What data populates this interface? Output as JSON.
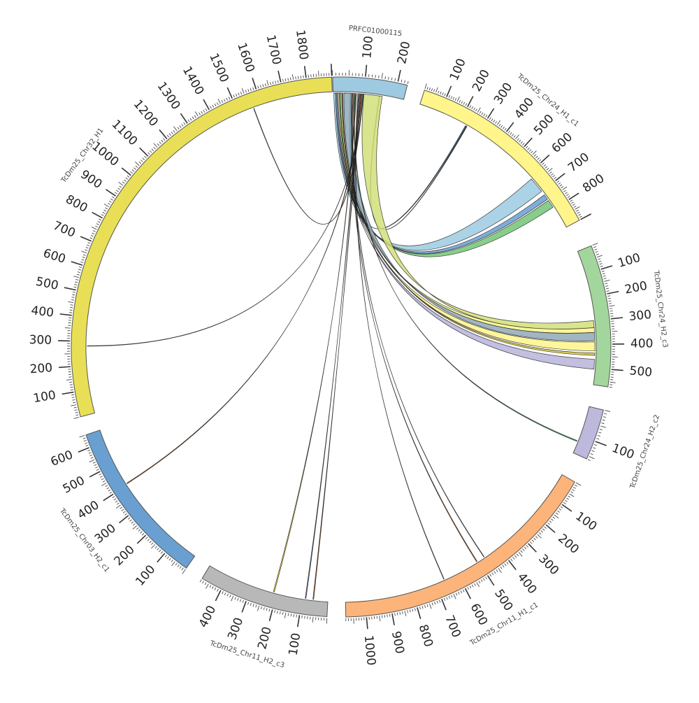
{
  "segments": [
    {
      "id": "prfc",
      "name": "PRFC01000115",
      "length": 230,
      "color": "#9ecae1",
      "ticks": [
        100,
        200
      ]
    },
    {
      "id": "chr24h1c1",
      "name": "TcDm25_Chr24_H1_c1",
      "length": 900,
      "color": "#fff58a",
      "ticks": [
        100,
        200,
        300,
        400,
        500,
        600,
        700,
        800
      ]
    },
    {
      "id": "chr24h2c3",
      "name": "TcDm25_Chr24_H2_c3",
      "length": 570,
      "color": "#a3d69c",
      "ticks": [
        100,
        200,
        300,
        400,
        500
      ]
    },
    {
      "id": "chr24h2c2",
      "name": "TcDm25_Chr24_H2_c2",
      "length": 160,
      "color": "#bcb9dc",
      "ticks": [
        100
      ]
    },
    {
      "id": "chr11h1c1",
      "name": "TcDm25_Chr11_H1_c1",
      "length": 1080,
      "color": "#fdb47a",
      "ticks": [
        100,
        200,
        300,
        400,
        500,
        600,
        700,
        800,
        900,
        1000
      ]
    },
    {
      "id": "chr11h2c3",
      "name": "TcDm25_Chr11_H2_c3",
      "length": 480,
      "color": "#b8b8b8",
      "ticks": [
        100,
        200,
        300,
        400
      ]
    },
    {
      "id": "chr03h2c1",
      "name": "TcDm25_Chr03_H2_c1",
      "length": 650,
      "color": "#6a9fd1",
      "ticks": [
        100,
        200,
        300,
        400,
        500,
        600
      ]
    },
    {
      "id": "chr32h1",
      "name": "TcDm25_Chr32_H1",
      "length": 1900,
      "color": "#e8df56",
      "ticks": [
        100,
        200,
        300,
        400,
        500,
        600,
        700,
        800,
        900,
        1000,
        1100,
        1200,
        1300,
        1400,
        1500,
        1600,
        1700,
        1800
      ]
    }
  ],
  "links": [
    {
      "from": "prfc",
      "from_pos": [
        2,
        8
      ],
      "to": "chr24h1c1",
      "to_pos": [
        625,
        700
      ],
      "color": "#9ecae1"
    },
    {
      "from": "prfc",
      "from_pos": [
        8,
        12
      ],
      "to": "chr24h1c1",
      "to_pos": [
        720,
        745
      ],
      "color": "#6a9fd1"
    },
    {
      "from": "prfc",
      "from_pos": [
        20,
        24
      ],
      "to": "chr24h1c1",
      "to_pos": [
        752,
        790
      ],
      "color": "#74c476"
    },
    {
      "from": "prfc",
      "from_pos": [
        55,
        58
      ],
      "to": "chr24h1c1",
      "to_pos": [
        232,
        236
      ],
      "color": "#3182bd"
    },
    {
      "from": "prfc",
      "from_pos": [
        150,
        152
      ],
      "to": "chr24h1c1",
      "to_pos": [
        238,
        240
      ],
      "color": "#e6550d"
    },
    {
      "from": "prfc",
      "from_pos": [
        12,
        16
      ],
      "to": "chr24h2c3",
      "to_pos": [
        463,
        505
      ],
      "color": "#b7b4da"
    },
    {
      "from": "prfc",
      "from_pos": [
        16,
        20
      ],
      "to": "chr24h2c3",
      "to_pos": [
        390,
        428
      ],
      "color": "#fff58a"
    },
    {
      "from": "prfc",
      "from_pos": [
        24,
        28
      ],
      "to": "chr24h2c3",
      "to_pos": [
        328,
        350
      ],
      "color": "#fff58a"
    },
    {
      "from": "prfc",
      "from_pos": [
        30,
        32
      ],
      "to": "chr24h2c3",
      "to_pos": [
        437,
        447
      ],
      "color": "#d9c63a"
    },
    {
      "from": "prfc",
      "from_pos": [
        35,
        60
      ],
      "to": "chr24h2c3",
      "to_pos": [
        350,
        385
      ],
      "color": "#8fa9b8"
    },
    {
      "from": "prfc",
      "from_pos": [
        100,
        160
      ],
      "to": "chr24h2c3",
      "to_pos": [
        300,
        330
      ],
      "color": "#d2e07a"
    },
    {
      "from": "prfc",
      "from_pos": [
        70,
        72
      ],
      "to": "chr24h2c2",
      "to_pos": [
        118,
        121
      ],
      "color": "#31a354"
    },
    {
      "from": "prfc",
      "from_pos": [
        62,
        64
      ],
      "to": "chr11h1c1",
      "to_pos": [
        505,
        508
      ],
      "color": "#e6550d"
    },
    {
      "from": "prfc",
      "from_pos": [
        66,
        68
      ],
      "to": "chr11h1c1",
      "to_pos": [
        470,
        472
      ],
      "color": "#ffffff"
    },
    {
      "from": "prfc",
      "from_pos": [
        80,
        82
      ],
      "to": "chr11h1c1",
      "to_pos": [
        660,
        662
      ],
      "color": "#ffffff"
    },
    {
      "from": "prfc",
      "from_pos": [
        74,
        76
      ],
      "to": "chr11h2c3",
      "to_pos": [
        210,
        214
      ],
      "color": "#fdd835"
    },
    {
      "from": "prfc",
      "from_pos": [
        84,
        86
      ],
      "to": "chr11h2c3",
      "to_pos": [
        85,
        88
      ],
      "color": "#756bb1"
    },
    {
      "from": "prfc",
      "from_pos": [
        88,
        90
      ],
      "to": "chr11h2c3",
      "to_pos": [
        55,
        58
      ],
      "color": "#e6550d"
    },
    {
      "from": "prfc",
      "from_pos": [
        92,
        94
      ],
      "to": "chr03h2c1",
      "to_pos": [
        405,
        408
      ],
      "color": "#e6550d"
    },
    {
      "from": "prfc",
      "from_pos": [
        96,
        98
      ],
      "to": "chr32h1",
      "to_pos": [
        1565,
        1567
      ],
      "color": "#ffffff"
    },
    {
      "from": "prfc",
      "from_pos": [
        98,
        99
      ],
      "to": "chr32h1",
      "to_pos": [
        280,
        282
      ],
      "color": "#ffffff"
    }
  ]
}
